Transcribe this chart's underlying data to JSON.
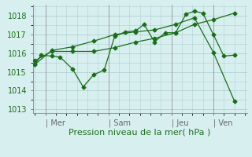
{
  "bg_color": "#d8eff0",
  "grid_color": "#b0d0d0",
  "line_color": "#1a6e1a",
  "xlabel": "Pression niveau de la mer( hPa )",
  "xlabel_fontsize": 8,
  "tick_fontsize": 7,
  "ylim": [
    1012.8,
    1018.6
  ],
  "yticks": [
    1013,
    1014,
    1015,
    1016,
    1017,
    1018
  ],
  "day_labels": [
    "| Mer",
    "| Sam",
    "| Jeu",
    "| Ven"
  ],
  "day_positions": [
    0.5,
    3.5,
    6.5,
    8.5
  ],
  "xlim": [
    -0.1,
    10.1
  ],
  "series1_x": [
    0.0,
    0.3,
    0.8,
    1.2,
    1.8,
    2.3,
    2.8,
    3.3,
    3.8,
    4.3,
    4.8,
    5.2,
    5.7,
    6.2,
    6.7,
    7.2,
    7.6,
    8.0,
    8.5,
    9.0,
    9.5
  ],
  "series1_y": [
    1015.4,
    1015.9,
    1015.85,
    1015.8,
    1015.15,
    1014.2,
    1014.85,
    1015.1,
    1016.9,
    1017.15,
    1017.2,
    1017.55,
    1016.6,
    1017.1,
    1017.1,
    1018.1,
    1018.25,
    1018.15,
    1017.0,
    1015.85,
    1015.9
  ],
  "series2_x": [
    0.0,
    0.8,
    1.8,
    2.8,
    3.8,
    4.8,
    5.7,
    6.7,
    7.6,
    8.5,
    9.5
  ],
  "series2_y": [
    1015.6,
    1016.1,
    1016.1,
    1016.1,
    1016.3,
    1016.6,
    1016.8,
    1017.1,
    1017.55,
    1017.8,
    1018.15
  ],
  "series3_x": [
    0.0,
    0.8,
    1.8,
    2.8,
    3.8,
    4.8,
    5.7,
    6.7,
    7.6,
    8.5,
    9.5
  ],
  "series3_y": [
    1015.4,
    1016.15,
    1016.35,
    1016.65,
    1017.0,
    1017.15,
    1017.25,
    1017.55,
    1017.9,
    1016.05,
    1013.45
  ],
  "figsize": [
    3.2,
    2.0
  ],
  "dpi": 100
}
